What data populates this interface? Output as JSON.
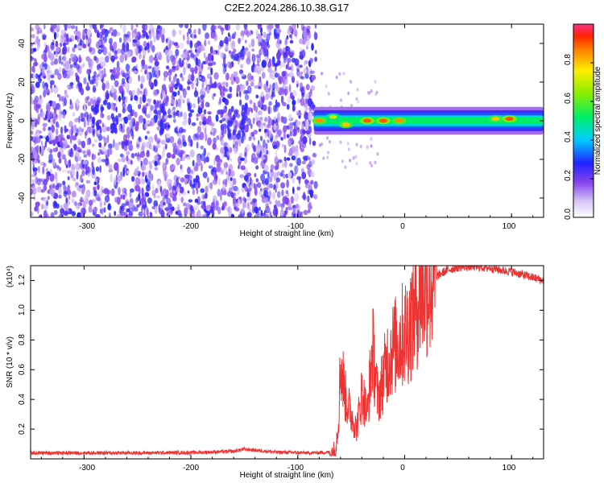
{
  "figure": {
    "title": "C2E2.2024.286.10.38.G17"
  },
  "chart_data": [
    {
      "type": "heatmap",
      "xlabel": "Height of straight line (km)",
      "ylabel": "Frequency (Hz)",
      "xlim": [
        -350,
        130
      ],
      "ylim": [
        -50,
        50
      ],
      "xticks": [
        "-300",
        "-200",
        "-100",
        "0",
        "100"
      ],
      "yticks": [
        "-40",
        "-20",
        "0",
        "20",
        "40"
      ],
      "colorbar": {
        "label": "Normalized spectral amplitude",
        "range": [
          0,
          1
        ],
        "ticks": [
          "0.0",
          "0.2",
          "0.4",
          "0.6",
          "0.8"
        ]
      },
      "regions": [
        {
          "x_range": [
            -350,
            -83
          ],
          "description_values": {
            "frequency_range": [
              -50,
              50
            ],
            "amplitude": 0.15
          }
        },
        {
          "x_range": [
            -85,
            130
          ],
          "description_values": {
            "frequency_center": 0,
            "frequency_halfwidth": 4,
            "amplitude": 0.5
          }
        }
      ],
      "peaks": [
        {
          "x": -80,
          "y": 0,
          "amplitude": 0.85
        },
        {
          "x": -67,
          "y": 2,
          "amplitude": 0.7
        },
        {
          "x": -55,
          "y": -2,
          "amplitude": 0.8
        },
        {
          "x": -35,
          "y": 0,
          "amplitude": 0.9
        },
        {
          "x": -20,
          "y": 0,
          "amplitude": 0.9
        },
        {
          "x": -5,
          "y": 0,
          "amplitude": 0.85
        },
        {
          "x": 85,
          "y": 1,
          "amplitude": 0.8
        },
        {
          "x": 98,
          "y": 1,
          "amplitude": 0.9
        }
      ]
    },
    {
      "type": "line",
      "xlabel": "Height of straight line (km)",
      "ylabel": "SNR (10 * v/v)",
      "yscale_note": "(x10⁴)",
      "xlim": [
        -350,
        130
      ],
      "ylim": [
        0,
        13000
      ],
      "xticks": [
        "-300",
        "-200",
        "-100",
        "0",
        "100"
      ],
      "yticks": [
        "0.2",
        "0.4",
        "0.6",
        "0.8",
        "1.0",
        "1.2"
      ],
      "color": "#ee3333",
      "series": [
        {
          "x": [
            -350,
            -300,
            -250,
            -200,
            -160,
            -150,
            -120,
            -90,
            -65,
            -62,
            -60,
            -55,
            -50,
            -45,
            -40,
            -35,
            -30,
            -25,
            -20,
            -15,
            -10,
            -5,
            0,
            5,
            10,
            20,
            30,
            40,
            50,
            60,
            70,
            80,
            90,
            100,
            110,
            120,
            130
          ],
          "y": [
            400,
            400,
            400,
            420,
            500,
            650,
            450,
            400,
            450,
            2500,
            6500,
            4000,
            3000,
            2000,
            4500,
            3000,
            7500,
            4000,
            5500,
            7000,
            7500,
            8000,
            8500,
            9000,
            10500,
            11800,
            12300,
            12700,
            12900,
            12950,
            12900,
            12850,
            12700,
            12600,
            12400,
            12200,
            12000
          ]
        }
      ]
    }
  ]
}
